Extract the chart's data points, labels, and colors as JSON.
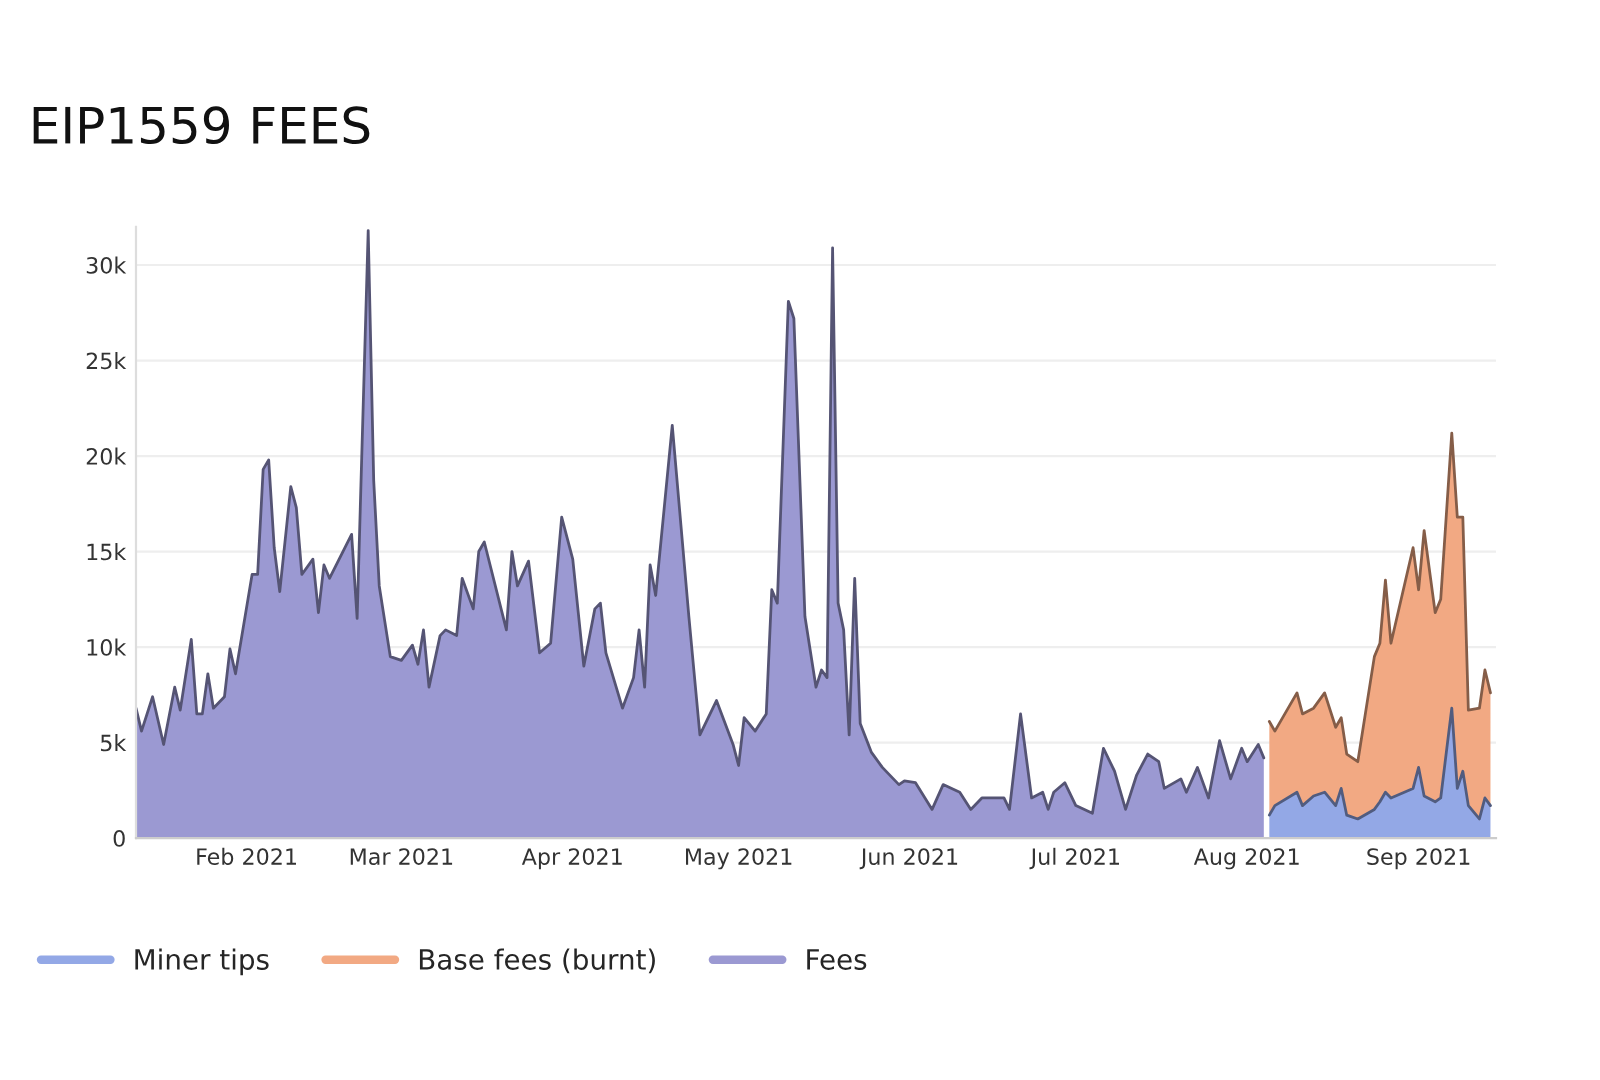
{
  "chart_data": {
    "type": "area",
    "title": "EIP1559 FEES",
    "stacked": true,
    "grid": "y",
    "legend": "bottom left",
    "xlim": [
      "2021-01-12",
      "2021-09-15"
    ],
    "xticks": [
      {
        "value": "2021-02-01",
        "label": "Feb 2021"
      },
      {
        "value": "2021-03-01",
        "label": "Mar 2021"
      },
      {
        "value": "2021-04-01",
        "label": "Apr 2021"
      },
      {
        "value": "2021-05-01",
        "label": "May 2021"
      },
      {
        "value": "2021-06-01",
        "label": "Jun 2021"
      },
      {
        "value": "2021-07-01",
        "label": "Jul 2021"
      },
      {
        "value": "2021-08-01",
        "label": "Aug 2021"
      },
      {
        "value": "2021-09-01",
        "label": "Sep 2021"
      }
    ],
    "ylim": [
      0,
      32000
    ],
    "yticks": [
      {
        "value": 0,
        "label": "0"
      },
      {
        "value": 5000,
        "label": "5k"
      },
      {
        "value": 10000,
        "label": "10k"
      },
      {
        "value": 15000,
        "label": "15k"
      },
      {
        "value": 20000,
        "label": "20k"
      },
      {
        "value": 25000,
        "label": "25k"
      },
      {
        "value": 30000,
        "label": "30k"
      }
    ],
    "x": [
      "2021-01-12",
      "2021-01-13",
      "2021-01-15",
      "2021-01-17",
      "2021-01-19",
      "2021-01-20",
      "2021-01-22",
      "2021-01-23",
      "2021-01-24",
      "2021-01-25",
      "2021-01-26",
      "2021-01-28",
      "2021-01-29",
      "2021-01-30",
      "2021-02-02",
      "2021-02-03",
      "2021-02-04",
      "2021-02-05",
      "2021-02-06",
      "2021-02-07",
      "2021-02-09",
      "2021-02-10",
      "2021-02-11",
      "2021-02-13",
      "2021-02-14",
      "2021-02-15",
      "2021-02-16",
      "2021-02-20",
      "2021-02-21",
      "2021-02-23",
      "2021-02-24",
      "2021-02-25",
      "2021-02-27",
      "2021-03-01",
      "2021-03-03",
      "2021-03-04",
      "2021-03-05",
      "2021-03-06",
      "2021-03-08",
      "2021-03-09",
      "2021-03-11",
      "2021-03-12",
      "2021-03-14",
      "2021-03-15",
      "2021-03-16",
      "2021-03-20",
      "2021-03-21",
      "2021-03-22",
      "2021-03-24",
      "2021-03-26",
      "2021-03-28",
      "2021-03-30",
      "2021-04-01",
      "2021-04-03",
      "2021-04-05",
      "2021-04-06",
      "2021-04-07",
      "2021-04-10",
      "2021-04-12",
      "2021-04-13",
      "2021-04-14",
      "2021-04-15",
      "2021-04-16",
      "2021-04-19",
      "2021-04-22",
      "2021-04-24",
      "2021-04-27",
      "2021-04-30",
      "2021-05-01",
      "2021-05-02",
      "2021-05-04",
      "2021-05-06",
      "2021-05-07",
      "2021-05-08",
      "2021-05-10",
      "2021-05-11",
      "2021-05-13",
      "2021-05-15",
      "2021-05-16",
      "2021-05-17",
      "2021-05-18",
      "2021-05-19",
      "2021-05-20",
      "2021-05-21",
      "2021-05-22",
      "2021-05-23",
      "2021-05-25",
      "2021-05-27",
      "2021-05-30",
      "2021-05-31",
      "2021-06-02",
      "2021-06-05",
      "2021-06-07",
      "2021-06-10",
      "2021-06-12",
      "2021-06-14",
      "2021-06-18",
      "2021-06-19",
      "2021-06-21",
      "2021-06-23",
      "2021-06-25",
      "2021-06-26",
      "2021-06-27",
      "2021-06-29",
      "2021-07-01",
      "2021-07-04",
      "2021-07-06",
      "2021-07-08",
      "2021-07-10",
      "2021-07-12",
      "2021-07-14",
      "2021-07-16",
      "2021-07-17",
      "2021-07-20",
      "2021-07-21",
      "2021-07-23",
      "2021-07-25",
      "2021-07-27",
      "2021-07-29",
      "2021-07-31",
      "2021-08-01",
      "2021-08-03",
      "2021-08-04",
      "2021-08-05",
      "2021-08-06",
      "2021-08-10",
      "2021-08-11",
      "2021-08-13",
      "2021-08-15",
      "2021-08-17",
      "2021-08-18",
      "2021-08-19",
      "2021-08-21",
      "2021-08-24",
      "2021-08-25",
      "2021-08-26",
      "2021-08-27",
      "2021-08-31",
      "2021-09-01",
      "2021-09-02",
      "2021-09-04",
      "2021-09-05",
      "2021-09-07",
      "2021-09-08",
      "2021-09-09",
      "2021-09-10",
      "2021-09-12",
      "2021-09-13",
      "2021-09-14"
    ],
    "series": [
      {
        "name": "Miner tips",
        "color": "#93a8e6",
        "values": [
          null,
          null,
          null,
          null,
          null,
          null,
          null,
          null,
          null,
          null,
          null,
          null,
          null,
          null,
          null,
          null,
          null,
          null,
          null,
          null,
          null,
          null,
          null,
          null,
          null,
          null,
          null,
          null,
          null,
          null,
          null,
          null,
          null,
          null,
          null,
          null,
          null,
          null,
          null,
          null,
          null,
          null,
          null,
          null,
          null,
          null,
          null,
          null,
          null,
          null,
          null,
          null,
          null,
          null,
          null,
          null,
          null,
          null,
          null,
          null,
          null,
          null,
          null,
          null,
          null,
          null,
          null,
          null,
          null,
          null,
          null,
          null,
          null,
          null,
          null,
          null,
          null,
          null,
          null,
          null,
          null,
          null,
          null,
          null,
          null,
          null,
          null,
          null,
          null,
          null,
          null,
          null,
          null,
          null,
          null,
          null,
          null,
          null,
          null,
          null,
          null,
          null,
          null,
          null,
          null,
          null,
          null,
          null,
          null,
          null,
          null,
          null,
          null,
          null,
          null,
          null,
          null,
          null,
          null,
          null,
          null,
          null,
          null,
          1200,
          1700,
          2400,
          1700,
          2200,
          2400,
          1700,
          2600,
          1200,
          1000,
          1500,
          1900,
          2400,
          2100,
          2600,
          3700,
          2200,
          1900,
          2100,
          6800,
          2600,
          3500,
          1700,
          1000,
          2100,
          1700
        ]
      },
      {
        "name": "Base fees (burnt)",
        "color": "#f2a983",
        "values": [
          null,
          null,
          null,
          null,
          null,
          null,
          null,
          null,
          null,
          null,
          null,
          null,
          null,
          null,
          null,
          null,
          null,
          null,
          null,
          null,
          null,
          null,
          null,
          null,
          null,
          null,
          null,
          null,
          null,
          null,
          null,
          null,
          null,
          null,
          null,
          null,
          null,
          null,
          null,
          null,
          null,
          null,
          null,
          null,
          null,
          null,
          null,
          null,
          null,
          null,
          null,
          null,
          null,
          null,
          null,
          null,
          null,
          null,
          null,
          null,
          null,
          null,
          null,
          null,
          null,
          null,
          null,
          null,
          null,
          null,
          null,
          null,
          null,
          null,
          null,
          null,
          null,
          null,
          null,
          null,
          null,
          null,
          null,
          null,
          null,
          null,
          null,
          null,
          null,
          null,
          null,
          null,
          null,
          null,
          null,
          null,
          null,
          null,
          null,
          null,
          null,
          null,
          null,
          null,
          null,
          null,
          null,
          null,
          null,
          null,
          null,
          null,
          null,
          null,
          null,
          null,
          null,
          null,
          null,
          null,
          null,
          null,
          null,
          4900,
          3900,
          5200,
          4800,
          4600,
          5200,
          4100,
          3700,
          3200,
          3000,
          8000,
          8300,
          11100,
          8100,
          12600,
          9300,
          13900,
          9900,
          10400,
          14400,
          14200,
          13300,
          5000,
          5800,
          6700,
          5900
        ]
      },
      {
        "name": "Fees",
        "color": "#9b99d2",
        "values": [
          6800,
          5600,
          7400,
          4900,
          7900,
          6700,
          10400,
          6500,
          6500,
          8600,
          6800,
          7400,
          9900,
          8600,
          13800,
          13800,
          19300,
          19800,
          15200,
          12900,
          18400,
          17300,
          13800,
          14600,
          11800,
          14300,
          13600,
          15900,
          11500,
          31800,
          18700,
          13200,
          9500,
          9300,
          10100,
          9100,
          10900,
          7900,
          10600,
          10900,
          10600,
          13600,
          12000,
          15000,
          15500,
          10900,
          15000,
          13200,
          14500,
          9700,
          10200,
          16800,
          14600,
          9000,
          12000,
          12300,
          9700,
          6800,
          8400,
          10900,
          7900,
          14300,
          12700,
          21600,
          11600,
          5400,
          7200,
          4900,
          3800,
          6300,
          5600,
          6500,
          13000,
          12300,
          28100,
          27200,
          11600,
          7900,
          8800,
          8400,
          30900,
          12300,
          10900,
          5400,
          13600,
          6000,
          4500,
          3700,
          2800,
          3000,
          2900,
          1500,
          2800,
          2400,
          1500,
          2100,
          2100,
          1500,
          6500,
          2100,
          2400,
          1500,
          2400,
          2900,
          1700,
          1300,
          4700,
          3500,
          1500,
          3300,
          4400,
          4000,
          2600,
          3100,
          2400,
          3700,
          2100,
          5100,
          3100,
          4700,
          4000,
          4900,
          4200,
          null,
          null,
          null,
          null,
          null,
          null,
          null,
          null,
          null,
          null,
          null,
          null,
          null,
          null,
          null,
          null,
          null,
          null,
          null,
          null,
          null,
          null,
          null,
          null,
          null,
          null
        ]
      }
    ]
  }
}
